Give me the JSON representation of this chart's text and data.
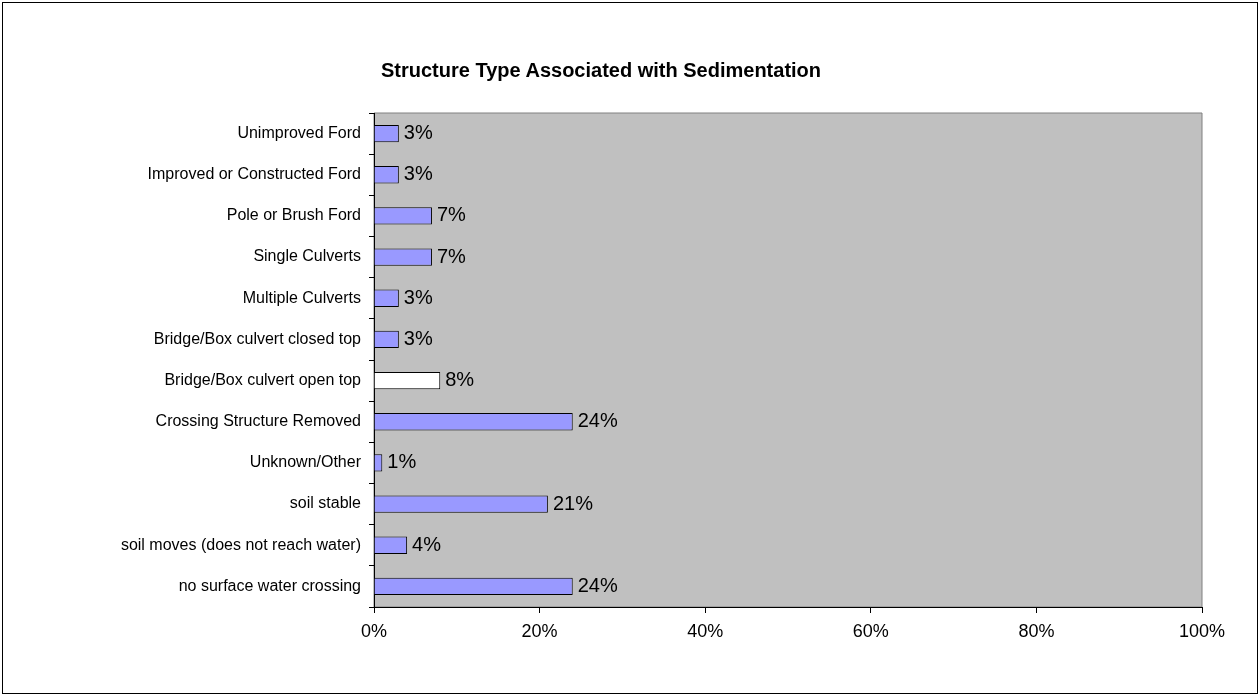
{
  "chart_data": {
    "type": "bar",
    "orientation": "horizontal",
    "title": "Structure Type Associated with Sedimentation",
    "categories": [
      "Unimproved Ford",
      "Improved or Constructed Ford",
      "Pole or Brush Ford",
      "Single Culverts",
      "Multiple Culverts",
      "Bridge/Box culvert closed top",
      "Bridge/Box culvert open top",
      "Crossing Structure Removed",
      "Unknown/Other",
      "soil stable",
      "soil moves (does not reach water)",
      "no surface water crossing"
    ],
    "values": [
      3,
      3,
      7,
      7,
      3,
      3,
      8,
      24,
      1,
      21,
      4,
      24
    ],
    "colors": [
      "#9999ff",
      "#9999ff",
      "#9999ff",
      "#9999ff",
      "#9999ff",
      "#9999ff",
      "#ffffff",
      "#9999ff",
      "#9999ff",
      "#9999ff",
      "#9999ff",
      "#9999ff"
    ],
    "value_labels": [
      "3%",
      "3%",
      "7%",
      "7%",
      "3%",
      "3%",
      "8%",
      "24%",
      "1%",
      "21%",
      "4%",
      "24%"
    ],
    "xlim": [
      0,
      100
    ],
    "xticks": [
      {
        "value": 0,
        "label": "0%"
      },
      {
        "value": 20,
        "label": "20%"
      },
      {
        "value": 40,
        "label": "40%"
      },
      {
        "value": 60,
        "label": "60%"
      },
      {
        "value": 80,
        "label": "80%"
      },
      {
        "value": 100,
        "label": "100%"
      }
    ],
    "grid": false,
    "legend": false
  }
}
